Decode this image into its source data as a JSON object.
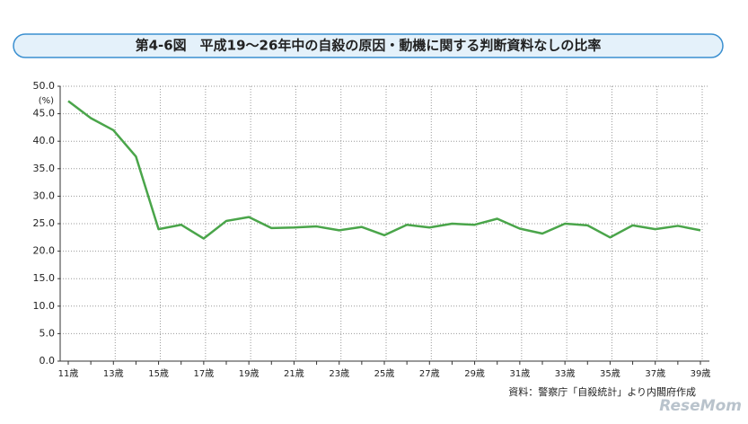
{
  "chart_data": {
    "type": "line",
    "title": "第4-6図　平成19～26年中の自殺の原因・動機に関する判断資料なしの比率",
    "y_unit": "(%)",
    "source": "資料：警察庁「自殺統計」より内閣府作成",
    "watermark": "ReseMom",
    "categories": [
      "11歳",
      null,
      "13歳",
      null,
      "15歳",
      null,
      "17歳",
      null,
      "19歳",
      null,
      "21歳",
      null,
      "23歳",
      null,
      "25歳",
      null,
      "27歳",
      null,
      "29歳",
      null,
      "31歳",
      null,
      "33歳",
      null,
      "35歳",
      null,
      "37歳",
      null,
      "39歳"
    ],
    "series": [
      {
        "color": "#4aa54a",
        "values": [
          47.3,
          44.2,
          42.0,
          37.2,
          24.0,
          24.8,
          22.3,
          25.5,
          26.2,
          24.2,
          24.3,
          24.5,
          23.8,
          24.4,
          22.9,
          24.8,
          24.3,
          25.0,
          24.8,
          25.9,
          24.1,
          23.2,
          25.0,
          24.7,
          22.5,
          24.7,
          24.0,
          24.6,
          23.8
        ]
      }
    ],
    "ylim": [
      0,
      50
    ],
    "yticks": [
      {
        "value": 0,
        "label": "0.0"
      },
      {
        "value": 5,
        "label": "5.0"
      },
      {
        "value": 10,
        "label": "10.0"
      },
      {
        "value": 15,
        "label": "15.0"
      },
      {
        "value": 20,
        "label": "20.0"
      },
      {
        "value": 25,
        "label": "25.0"
      },
      {
        "value": 30,
        "label": "30.0"
      },
      {
        "value": 35,
        "label": "35.0"
      },
      {
        "value": 40,
        "label": "40.0"
      },
      {
        "value": 45,
        "label": "45.0"
      },
      {
        "value": 50,
        "label": "50.0"
      }
    ],
    "grid": true
  }
}
